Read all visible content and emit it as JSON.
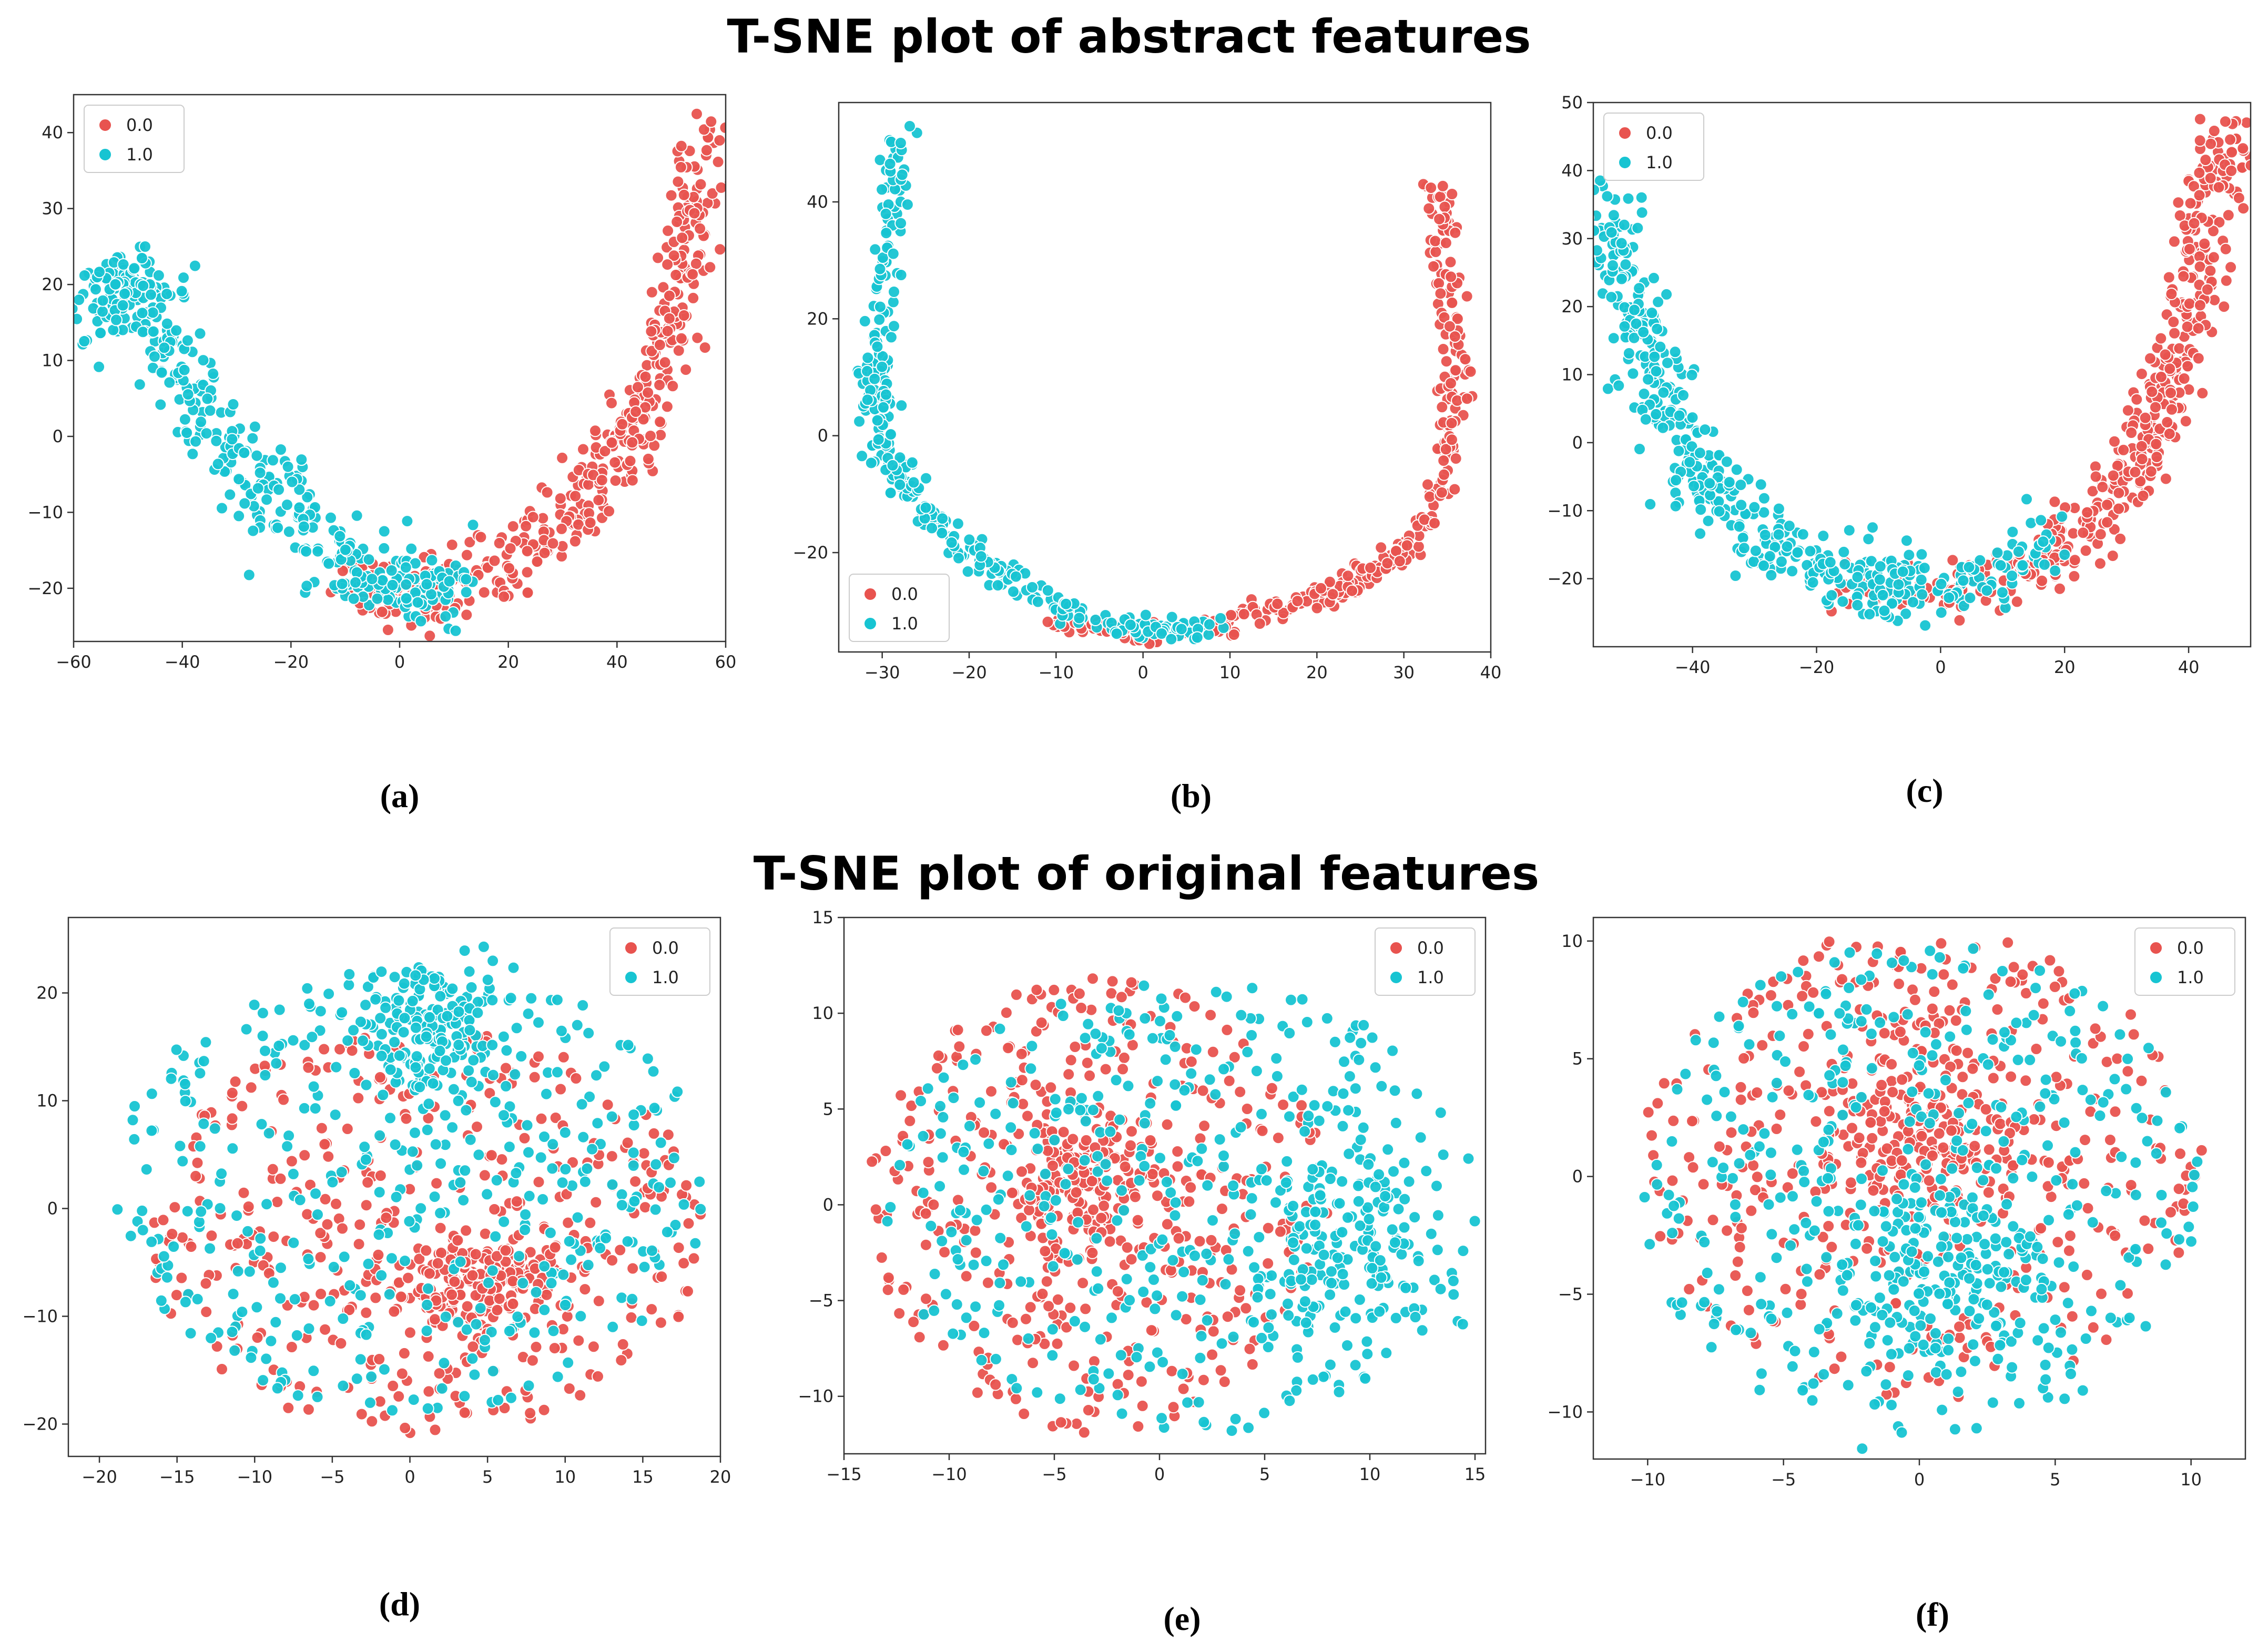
{
  "titles": {
    "abstract": "T-SNE plot of abstract features",
    "original": "T-SNE plot of original features"
  },
  "colors": {
    "class0": "#e8534f",
    "class1": "#17c4d2"
  },
  "legend_labels": [
    "0.0",
    "1.0"
  ],
  "chart_data": [
    {
      "type": "scatter",
      "caption": "(a)",
      "xlim": [
        -60,
        60
      ],
      "ylim": [
        -27,
        45
      ],
      "xticks": [
        -60,
        -40,
        -20,
        0,
        20,
        40,
        60
      ],
      "yticks": [
        -20,
        -10,
        0,
        10,
        20,
        30,
        40
      ],
      "legend_loc": "upper-left",
      "series": [
        {
          "name": "0.0",
          "shape": "curve",
          "n": 420,
          "spread": 2.6,
          "seed": 11,
          "centerline": [
            [
              -10,
              -20
            ],
            [
              5,
              -21
            ],
            [
              20,
              -17
            ],
            [
              32,
              -10
            ],
            [
              40,
              -2
            ],
            [
              46,
              5
            ],
            [
              50,
              16
            ],
            [
              53,
              28
            ],
            [
              56,
              40
            ]
          ]
        },
        {
          "name": "1.0",
          "shape": "curve",
          "n": 440,
          "spread": 2.8,
          "seed": 23,
          "centerline": [
            [
              -55,
              18
            ],
            [
              -50,
              20
            ],
            [
              -45,
              17
            ],
            [
              -40,
              8
            ],
            [
              -32,
              -2
            ],
            [
              -22,
              -10
            ],
            [
              -12,
              -16
            ],
            [
              0,
              -20
            ],
            [
              12,
              -21
            ]
          ]
        }
      ]
    },
    {
      "type": "scatter",
      "caption": "(b)",
      "xlim": [
        -35,
        40
      ],
      "ylim": [
        -37,
        57
      ],
      "xticks": [
        -30,
        -20,
        -10,
        0,
        10,
        20,
        30,
        40
      ],
      "yticks": [
        -20,
        0,
        20,
        40
      ],
      "legend_loc": "lower-left",
      "series": [
        {
          "name": "0.0",
          "shape": "curve",
          "n": 320,
          "spread": 1.0,
          "seed": 31,
          "centerline": [
            [
              -10,
              -32
            ],
            [
              0,
              -34
            ],
            [
              10,
              -32
            ],
            [
              20,
              -28
            ],
            [
              28,
              -22
            ],
            [
              33,
              -14
            ],
            [
              35,
              -2
            ],
            [
              36,
              10
            ],
            [
              35,
              25
            ],
            [
              34,
              44
            ]
          ]
        },
        {
          "name": "1.0",
          "shape": "curve",
          "n": 340,
          "spread": 1.0,
          "seed": 37,
          "centerline": [
            [
              -28,
              52
            ],
            [
              -29,
              38
            ],
            [
              -30,
              20
            ],
            [
              -31,
              8
            ],
            [
              -30,
              0
            ],
            [
              -27,
              -10
            ],
            [
              -20,
              -20
            ],
            [
              -12,
              -28
            ],
            [
              -2,
              -33
            ],
            [
              8,
              -33
            ]
          ]
        }
      ]
    },
    {
      "type": "scatter",
      "caption": "(c)",
      "xlim": [
        -56,
        50
      ],
      "ylim": [
        -30,
        50
      ],
      "xticks": [
        -40,
        -20,
        0,
        20,
        40
      ],
      "yticks": [
        -20,
        -10,
        0,
        10,
        20,
        30,
        40,
        50
      ],
      "legend_loc": "upper-left",
      "series": [
        {
          "name": "0.0",
          "shape": "curve",
          "n": 420,
          "spread": 2.4,
          "seed": 41,
          "centerline": [
            [
              -15,
              -22
            ],
            [
              0,
              -22
            ],
            [
              15,
              -18
            ],
            [
              25,
              -10
            ],
            [
              32,
              -2
            ],
            [
              36,
              6
            ],
            [
              38,
              14
            ],
            [
              42,
              26
            ],
            [
              44,
              38
            ],
            [
              46,
              46
            ]
          ]
        },
        {
          "name": "1.0",
          "shape": "curve",
          "n": 460,
          "spread": 2.6,
          "seed": 43,
          "centerline": [
            [
              -54,
              35
            ],
            [
              -52,
              25
            ],
            [
              -48,
              14
            ],
            [
              -44,
              4
            ],
            [
              -38,
              -6
            ],
            [
              -30,
              -13
            ],
            [
              -20,
              -19
            ],
            [
              -8,
              -22
            ],
            [
              5,
              -21
            ],
            [
              18,
              -14
            ]
          ]
        }
      ]
    },
    {
      "type": "scatter",
      "caption": "(d)",
      "xlim": [
        -22,
        20
      ],
      "ylim": [
        -23,
        27
      ],
      "xticks": [
        -20,
        -15,
        -10,
        -5,
        0,
        5,
        10,
        15,
        20
      ],
      "yticks": [
        -20,
        -10,
        0,
        10,
        20
      ],
      "legend_loc": "upper-right",
      "series": [
        {
          "name": "0.0",
          "shape": "blob",
          "n": 560,
          "seed": 51,
          "cx": 1,
          "cy": -2,
          "rx": 18,
          "ry": 19,
          "core": [
            4,
            -7,
            5,
            4
          ]
        },
        {
          "name": "1.0",
          "shape": "blob",
          "n": 560,
          "seed": 53,
          "cx": 0,
          "cy": 2,
          "rx": 19,
          "ry": 21,
          "core": [
            1,
            17,
            5,
            6
          ]
        }
      ]
    },
    {
      "type": "scatter",
      "caption": "(e)",
      "xlim": [
        -15,
        15.5
      ],
      "ylim": [
        -13,
        15
      ],
      "xticks": [
        -15,
        -10,
        -5,
        0,
        5,
        10,
        15
      ],
      "yticks": [
        -10,
        -5,
        0,
        5,
        10,
        15
      ],
      "legend_loc": "upper-right",
      "series": [
        {
          "name": "0.0",
          "shape": "blob",
          "n": 540,
          "seed": 61,
          "cx": -3,
          "cy": 0,
          "rx": 11,
          "ry": 12,
          "core": [
            -4,
            1,
            4,
            4
          ]
        },
        {
          "name": "1.0",
          "shape": "blob",
          "n": 540,
          "seed": 63,
          "cx": 1,
          "cy": 0,
          "rx": 14,
          "ry": 12,
          "core": [
            9,
            -2,
            5,
            5
          ]
        }
      ]
    },
    {
      "type": "scatter",
      "caption": "(f)",
      "xlim": [
        -12,
        12
      ],
      "ylim": [
        -12,
        11
      ],
      "xticks": [
        -10,
        -5,
        0,
        5,
        10
      ],
      "yticks": [
        -10,
        -5,
        0,
        5,
        10
      ],
      "legend_loc": "upper-right",
      "series": [
        {
          "name": "0.0",
          "shape": "blob",
          "n": 560,
          "seed": 71,
          "cx": 0,
          "cy": 0.5,
          "rx": 10.5,
          "ry": 10,
          "core": [
            0,
            2,
            4,
            4
          ]
        },
        {
          "name": "1.0",
          "shape": "blob",
          "n": 560,
          "seed": 73,
          "cx": 0,
          "cy": -0.5,
          "rx": 10.5,
          "ry": 10.5,
          "core": [
            1,
            -4,
            4,
            4
          ]
        }
      ]
    }
  ]
}
